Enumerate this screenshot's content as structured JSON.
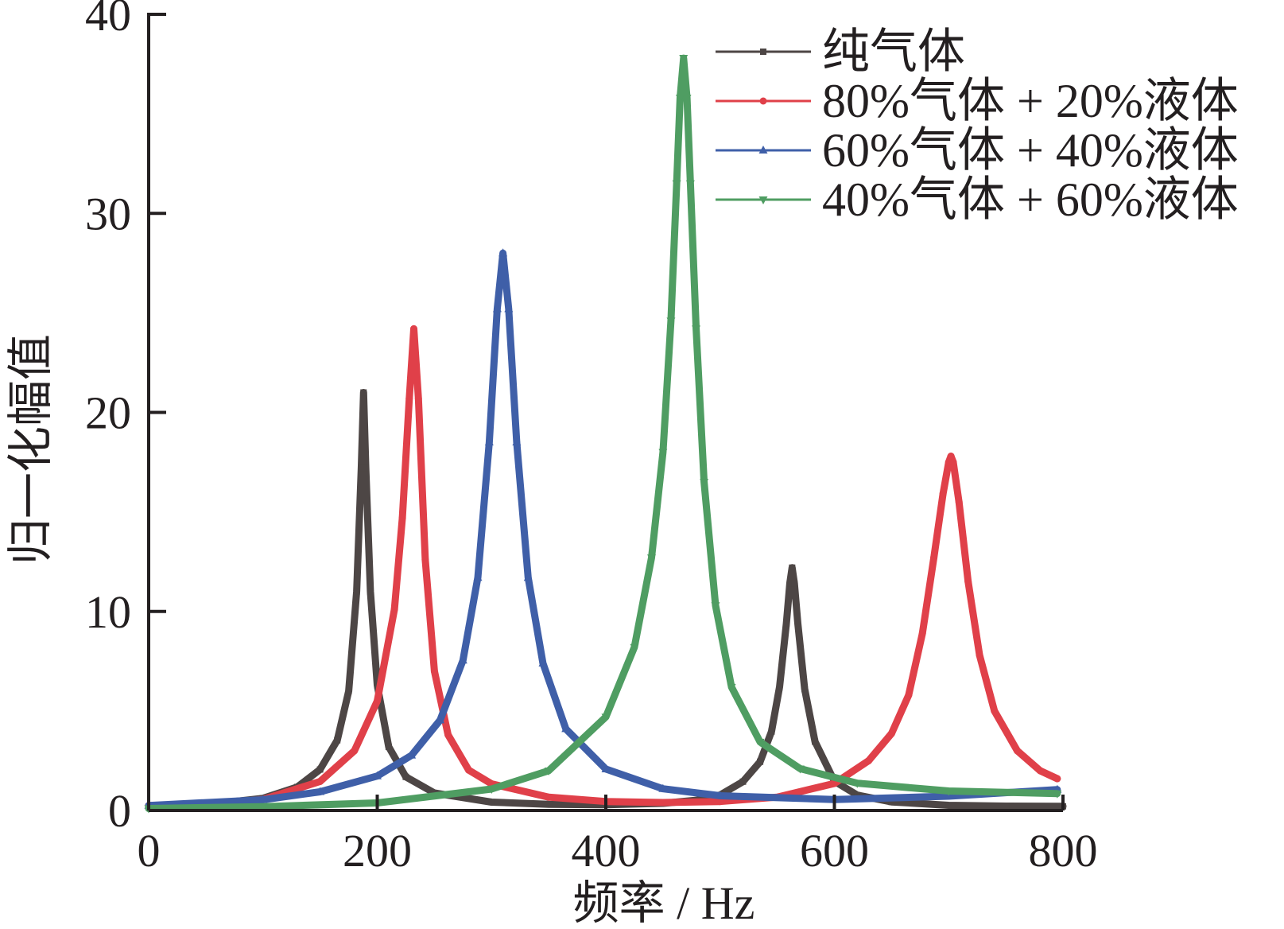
{
  "chart_data": {
    "type": "line",
    "xlabel": "频率 / Hz",
    "ylabel": "归一化幅值",
    "xlim": [
      0,
      800
    ],
    "ylim": [
      0,
      40
    ],
    "xticks": [
      0,
      200,
      400,
      600,
      800
    ],
    "yticks": [
      0,
      10,
      20,
      30,
      40
    ],
    "x_tick_labels": [
      "0",
      "200",
      "400",
      "600",
      "800"
    ],
    "y_tick_labels": [
      "0",
      "10",
      "20",
      "30",
      "40"
    ],
    "grid": false,
    "legend_position": "top-right",
    "series": [
      {
        "name": "纯气体",
        "color": "#4d4645",
        "marker": "square",
        "peaks": [
          {
            "f": 188,
            "a": 21.0
          },
          {
            "f": 563,
            "a": 12.2
          }
        ],
        "baseline": 0.2,
        "x": [
          0,
          50,
          100,
          130,
          150,
          165,
          175,
          182,
          186,
          188,
          190,
          194,
          200,
          210,
          225,
          250,
          300,
          350,
          400,
          450,
          480,
          500,
          520,
          535,
          545,
          552,
          558,
          561,
          563,
          565,
          568,
          574,
          583,
          600,
          620,
          650,
          700,
          750,
          800
        ],
        "y": [
          0.2,
          0.29,
          0.61,
          1.18,
          2.06,
          3.53,
          6.0,
          11.0,
          17.2,
          21.0,
          17.2,
          11.0,
          6.3,
          3.2,
          1.69,
          0.88,
          0.42,
          0.31,
          0.29,
          0.36,
          0.52,
          0.78,
          1.45,
          2.45,
          3.97,
          6.2,
          9.4,
          11.4,
          12.2,
          11.4,
          9.4,
          6.1,
          3.46,
          1.47,
          0.77,
          0.43,
          0.26,
          0.22,
          0.21
        ]
      },
      {
        "name": "80%气体 + 20%液体",
        "color": "#e04049",
        "marker": "circle",
        "peaks": [
          {
            "f": 232,
            "a": 24.2
          },
          {
            "f": 702,
            "a": 17.8
          }
        ],
        "baseline": 0.25,
        "x": [
          0,
          50,
          100,
          150,
          180,
          200,
          215,
          222,
          228,
          232,
          236,
          242,
          250,
          262,
          280,
          300,
          350,
          400,
          450,
          500,
          550,
          600,
          630,
          650,
          665,
          677,
          687,
          695,
          700,
          702,
          704,
          709,
          717,
          727,
          740,
          760,
          780,
          795
        ],
        "y": [
          0.25,
          0.31,
          0.55,
          1.46,
          3.0,
          5.5,
          10.1,
          14.7,
          20.7,
          24.2,
          20.7,
          12.6,
          7.0,
          3.8,
          2.03,
          1.34,
          0.67,
          0.45,
          0.4,
          0.45,
          0.67,
          1.36,
          2.5,
          3.87,
          5.8,
          8.9,
          12.7,
          15.9,
          17.5,
          17.8,
          17.5,
          15.5,
          11.5,
          7.8,
          5.0,
          3.0,
          2.0,
          1.6
        ]
      },
      {
        "name": "60%气体 + 40%液体",
        "color": "#3f5fa8",
        "marker": "triangle-up",
        "peaks": [
          {
            "f": 310,
            "a": 28.0
          }
        ],
        "baseline": 0.25,
        "x": [
          0,
          100,
          150,
          200,
          230,
          255,
          275,
          288,
          298,
          305,
          310,
          315,
          322,
          332,
          345,
          365,
          400,
          450,
          500,
          600,
          700,
          795
        ],
        "y": [
          0.25,
          0.54,
          0.94,
          1.73,
          2.77,
          4.54,
          7.54,
          11.7,
          18.5,
          25.2,
          28.0,
          25.2,
          18.5,
          11.7,
          7.4,
          4.1,
          2.08,
          1.09,
          0.74,
          0.55,
          0.72,
          1.05
        ]
      },
      {
        "name": "40%气体 + 60%液体",
        "color": "#4f9d62",
        "marker": "triangle-down",
        "peaks": [
          {
            "f": 468,
            "a": 37.8
          }
        ],
        "baseline": 0.1,
        "x": [
          0,
          100,
          200,
          300,
          350,
          400,
          425,
          440,
          450,
          457,
          462,
          465,
          468,
          471,
          474,
          479,
          486,
          496,
          510,
          535,
          570,
          620,
          700,
          795
        ],
        "y": [
          0.1,
          0.19,
          0.38,
          1.08,
          2.0,
          4.7,
          8.2,
          12.7,
          18.0,
          24.6,
          31.5,
          35.8,
          37.8,
          35.8,
          31.5,
          24.2,
          16.5,
          10.3,
          6.2,
          3.44,
          2.1,
          1.37,
          0.98,
          0.85
        ]
      }
    ]
  }
}
